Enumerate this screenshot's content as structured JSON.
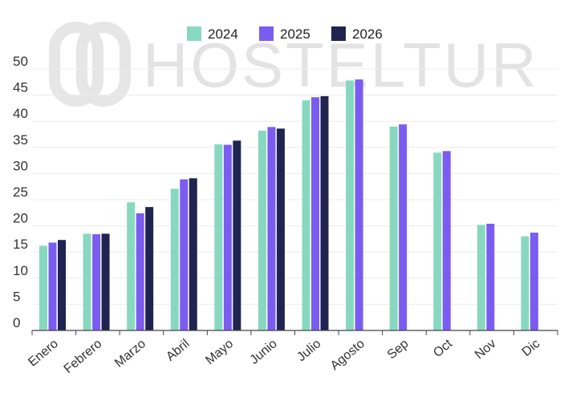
{
  "watermark": {
    "text": "HOSTELTUR"
  },
  "chart_data": {
    "type": "bar",
    "title": "",
    "xlabel": "",
    "ylabel": "",
    "ylim": [
      0,
      50
    ],
    "yticks": [
      0,
      5,
      10,
      15,
      20,
      25,
      30,
      35,
      40,
      45,
      50
    ],
    "grid": true,
    "legend_position": "top-center",
    "categories": [
      "Enero",
      "Febrero",
      "Marzo",
      "Abril",
      "Mayo",
      "Junio",
      "Julio",
      "Agosto",
      "Sep",
      "Oct",
      "Nov",
      "Dic"
    ],
    "series": [
      {
        "name": "2024",
        "color": "#88d8c0",
        "values": [
          16.2,
          18.5,
          24.5,
          27.1,
          35.6,
          38.2,
          44.0,
          47.8,
          39.0,
          34.0,
          20.2,
          18.0
        ]
      },
      {
        "name": "2025",
        "color": "#7b5cf0",
        "values": [
          16.8,
          18.4,
          22.4,
          28.9,
          35.5,
          38.9,
          44.6,
          48.0,
          39.4,
          34.3,
          20.4,
          18.7
        ]
      },
      {
        "name": "2026",
        "color": "#1f2550",
        "values": [
          17.3,
          18.5,
          23.6,
          29.1,
          36.3,
          38.6,
          44.8,
          null,
          null,
          null,
          null,
          null
        ]
      }
    ]
  }
}
